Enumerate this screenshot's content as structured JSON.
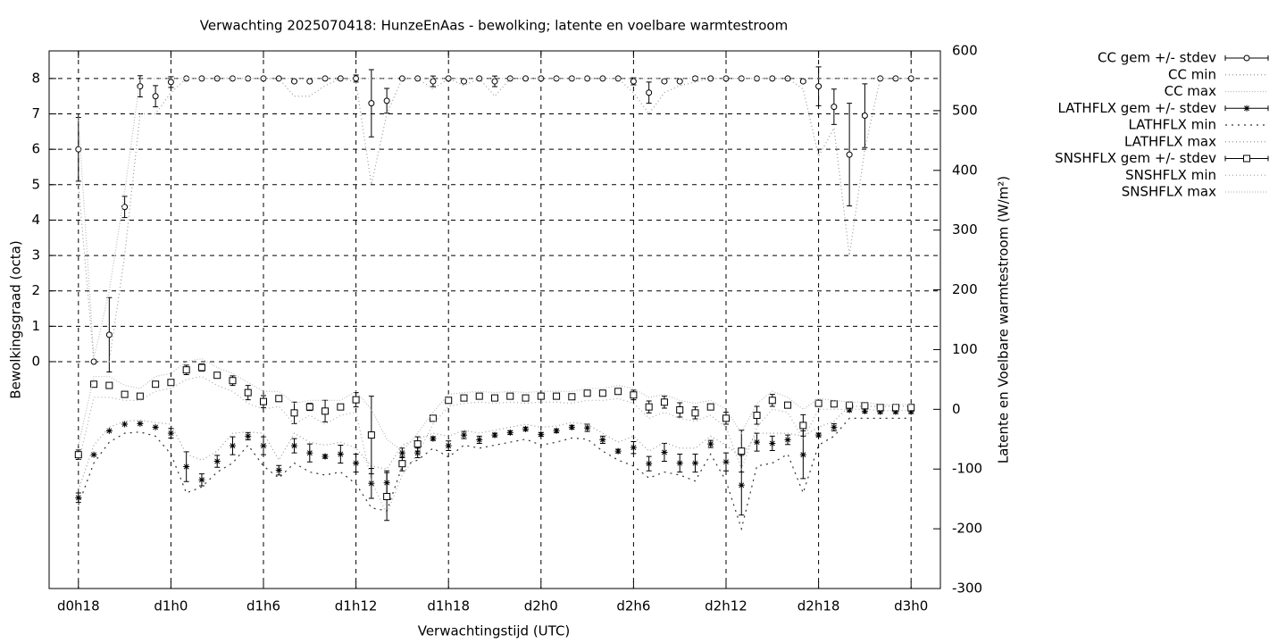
{
  "chart_data": {
    "type": "errorbar-line",
    "title": "Verwachting 2025070418: HunzeEnAas - bewolking; latente en voelbare warmtestroom",
    "xlabel": "Verwachtingstijd (UTC)",
    "ylabel": "Bewolkingsgraad (octa)",
    "y2label": "Latente en Voelbare warmtestroom (W/m²)",
    "grid": true,
    "legend": "outside-right",
    "xlim": [
      16.1,
      73.9
    ],
    "xticks": [
      {
        "value": 18,
        "label": "d0h18"
      },
      {
        "value": 24,
        "label": "d1h0"
      },
      {
        "value": 30,
        "label": "d1h6"
      },
      {
        "value": 36,
        "label": "d1h12"
      },
      {
        "value": 42,
        "label": "d1h18"
      },
      {
        "value": 48,
        "label": "d2h0"
      },
      {
        "value": 54,
        "label": "d2h6"
      },
      {
        "value": 60,
        "label": "d2h12"
      },
      {
        "value": 66,
        "label": "d2h18"
      },
      {
        "value": 72,
        "label": "d3h0"
      }
    ],
    "ylim": [
      -6.41,
      8.78
    ],
    "yticks": [
      0,
      1,
      2,
      3,
      4,
      5,
      6,
      7,
      8
    ],
    "y2lim": [
      -300,
      600
    ],
    "y2ticks": [
      -300,
      -200,
      -100,
      0,
      100,
      200,
      300,
      400,
      500,
      600
    ],
    "x": [
      18,
      19,
      20,
      21,
      22,
      23,
      24,
      25,
      26,
      27,
      28,
      29,
      30,
      31,
      32,
      33,
      34,
      35,
      36,
      37,
      38,
      39,
      40,
      41,
      42,
      43,
      44,
      45,
      46,
      47,
      48,
      49,
      50,
      51,
      52,
      53,
      54,
      55,
      56,
      57,
      58,
      59,
      60,
      61,
      62,
      63,
      64,
      65,
      66,
      67,
      68,
      69,
      70,
      71,
      72
    ],
    "series": [
      {
        "name": "CC gem +/- stdev",
        "axis": "y",
        "marker": "circle",
        "color": "#000000",
        "values": [
          6.0,
          0,
          0.76,
          4.37,
          7.78,
          7.5,
          7.9,
          8,
          8,
          8,
          8,
          8,
          8,
          8,
          7.92,
          7.92,
          8,
          8,
          8,
          7.3,
          7.37,
          8,
          8,
          7.92,
          8,
          7.92,
          8,
          7.92,
          8,
          8,
          8,
          8,
          8,
          8,
          8,
          8,
          7.92,
          7.6,
          7.92,
          7.92,
          8,
          8,
          8,
          8,
          8,
          8,
          8,
          7.92,
          7.78,
          7.2,
          5.85,
          6.95,
          8,
          8,
          8
        ],
        "errors": [
          0.9,
          0,
          1.05,
          0.3,
          0.3,
          0.3,
          0.15,
          0,
          0,
          0,
          0,
          0,
          0,
          0,
          0,
          0,
          0,
          0,
          0.1,
          0.95,
          0.35,
          0,
          0,
          0.15,
          0,
          0,
          0,
          0.15,
          0,
          0,
          0,
          0,
          0,
          0,
          0,
          0,
          0.1,
          0.3,
          0,
          0,
          0.05,
          0,
          0,
          0,
          0,
          0,
          0,
          0,
          0.55,
          0.5,
          1.45,
          0.9,
          0,
          0,
          0
        ]
      },
      {
        "name": "CC min",
        "axis": "y",
        "dash": "1,3",
        "color": "#999999",
        "values": [
          5.0,
          0,
          0,
          3.0,
          7.0,
          7.0,
          7.6,
          8,
          8,
          8,
          8,
          8,
          8,
          8,
          7.5,
          7.5,
          7.8,
          8,
          7.9,
          5.0,
          7.0,
          8,
          8,
          7.7,
          8,
          7.8,
          8,
          7.5,
          8,
          8,
          8,
          8,
          8,
          8,
          8,
          8,
          7.6,
          7.0,
          7.6,
          7.8,
          7.9,
          8,
          8,
          8,
          8,
          8,
          8,
          7.7,
          5.8,
          6.6,
          3.0,
          6.0,
          8,
          8,
          8
        ]
      },
      {
        "name": "CC max",
        "axis": "y",
        "dash": "1,2",
        "color": "#bbbbbb",
        "values": [
          6.9,
          0.1,
          2.0,
          4.8,
          8,
          8,
          8,
          8,
          8,
          8,
          8,
          8,
          8,
          8,
          8,
          8,
          8,
          8,
          8,
          8,
          8,
          8,
          8,
          8,
          8,
          8,
          8,
          8,
          8,
          8,
          8,
          8,
          8,
          8,
          8,
          8,
          8,
          8,
          8,
          8,
          8,
          8,
          8,
          8,
          8,
          8,
          8,
          8,
          8,
          8,
          8,
          8,
          8,
          8,
          8
        ]
      },
      {
        "name": "LATHFLX gem +/- stdev",
        "axis": "y2",
        "marker": "asterisk",
        "color": "#000000",
        "values": [
          -148,
          -76,
          -36,
          -25,
          -24,
          -30,
          -40,
          -96,
          -118,
          -87,
          -61,
          -45,
          -61,
          -102,
          -61,
          -73,
          -79,
          -75,
          -90,
          -124,
          -123,
          -73,
          -73,
          -49,
          -61,
          -43,
          -51,
          -43,
          -39,
          -33,
          -42,
          -36,
          -30,
          -31,
          -51,
          -70,
          -64,
          -91,
          -72,
          -90,
          -90,
          -58,
          -88,
          -127,
          -55,
          -57,
          -51,
          -76,
          -43,
          -30,
          -1,
          -3,
          -4,
          -4,
          -4
        ],
        "errors": [
          8,
          0,
          0,
          0,
          0,
          0,
          8,
          25,
          10,
          10,
          15,
          6,
          15,
          8,
          12,
          15,
          3,
          15,
          15,
          25,
          20,
          8,
          8,
          3,
          8,
          6,
          6,
          3,
          3,
          3,
          3,
          3,
          3,
          6,
          6,
          3,
          10,
          12,
          15,
          15,
          15,
          6,
          15,
          50,
          15,
          12,
          8,
          40,
          3,
          6,
          3,
          3,
          3,
          3,
          3
        ]
      },
      {
        "name": "LATHFLX min",
        "axis": "y2",
        "dash": "2,5",
        "color": "#333333",
        "values": [
          -160,
          -90,
          -55,
          -40,
          -38,
          -45,
          -75,
          -140,
          -130,
          -105,
          -90,
          -60,
          -95,
          -115,
          -90,
          -105,
          -110,
          -105,
          -125,
          -165,
          -170,
          -95,
          -85,
          -65,
          -80,
          -60,
          -65,
          -60,
          -55,
          -50,
          -60,
          -55,
          -48,
          -50,
          -70,
          -85,
          -95,
          -115,
          -105,
          -110,
          -120,
          -75,
          -120,
          -200,
          -95,
          -90,
          -75,
          -140,
          -60,
          -45,
          -15,
          -15,
          -15,
          -15,
          -15
        ]
      },
      {
        "name": "LATHFLX max",
        "axis": "y2",
        "dash": "1,3",
        "color": "#999999",
        "values": [
          -135,
          -60,
          -30,
          -20,
          -18,
          -22,
          -25,
          -75,
          -85,
          -70,
          -40,
          -38,
          -40,
          -85,
          -40,
          -55,
          -60,
          -55,
          -65,
          -95,
          -100,
          -60,
          -50,
          -40,
          -45,
          -35,
          -40,
          -35,
          -30,
          -25,
          -30,
          -28,
          -22,
          -25,
          -40,
          -55,
          -45,
          -70,
          -55,
          -65,
          -65,
          -45,
          -60,
          -80,
          -40,
          -40,
          -40,
          -45,
          -30,
          -20,
          5,
          5,
          5,
          5,
          5
        ]
      },
      {
        "name": "SNSHFLX gem +/- stdev",
        "axis": "y2",
        "marker": "square",
        "color": "#000000",
        "values": [
          -76,
          42,
          40,
          25,
          22,
          42,
          45,
          66,
          70,
          57,
          48,
          28,
          13,
          18,
          -6,
          4,
          -3,
          4,
          16,
          -43,
          -146,
          -91,
          -58,
          -15,
          15,
          19,
          22,
          19,
          22,
          19,
          22,
          22,
          21,
          27,
          27,
          30,
          24,
          4,
          12,
          -1,
          -6,
          4,
          -15,
          -70,
          -10,
          15,
          7,
          -27,
          10,
          9,
          7,
          6,
          3,
          3,
          3
        ],
        "errors": [
          8,
          0,
          0,
          0,
          0,
          0,
          0,
          8,
          6,
          3,
          8,
          12,
          10,
          5,
          18,
          6,
          18,
          3,
          12,
          65,
          40,
          12,
          12,
          4,
          3,
          3,
          3,
          3,
          3,
          3,
          5,
          3,
          3,
          3,
          3,
          3,
          8,
          10,
          10,
          12,
          10,
          3,
          10,
          35,
          15,
          10,
          3,
          18,
          3,
          3,
          3,
          3,
          3,
          3,
          3
        ]
      },
      {
        "name": "SNSHFLX min",
        "axis": "y2",
        "dash": "1,3",
        "color": "#aaaaaa",
        "values": [
          -90,
          20,
          20,
          15,
          15,
          30,
          35,
          50,
          55,
          40,
          30,
          10,
          0,
          5,
          -25,
          -10,
          -25,
          -10,
          -5,
          -120,
          -175,
          -110,
          -75,
          -25,
          5,
          10,
          12,
          10,
          12,
          10,
          12,
          12,
          10,
          15,
          15,
          18,
          10,
          -15,
          -5,
          -15,
          -20,
          -10,
          -30,
          -100,
          -30,
          0,
          -5,
          -50,
          0,
          0,
          0,
          0,
          -2,
          -2,
          -2
        ]
      },
      {
        "name": "SNSHFLX max",
        "axis": "y2",
        "dash": "1,2",
        "color": "#bbbbbb",
        "values": [
          -60,
          55,
          55,
          40,
          35,
          55,
          60,
          80,
          85,
          70,
          60,
          45,
          30,
          30,
          10,
          15,
          15,
          15,
          30,
          0,
          -50,
          -70,
          -40,
          -5,
          25,
          28,
          30,
          28,
          30,
          28,
          30,
          30,
          30,
          35,
          35,
          40,
          35,
          20,
          25,
          15,
          10,
          15,
          0,
          -40,
          10,
          30,
          20,
          0,
          18,
          15,
          12,
          12,
          8,
          8,
          8
        ]
      }
    ]
  }
}
